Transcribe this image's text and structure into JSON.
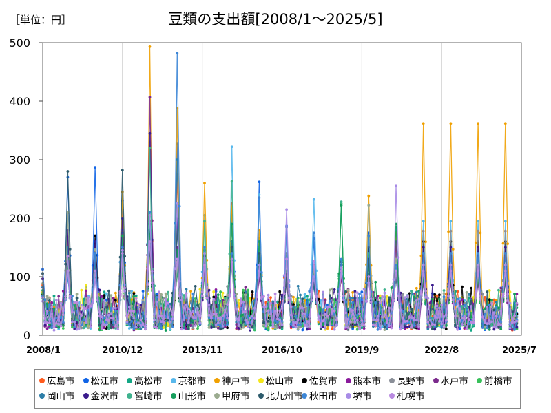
{
  "chart_data": {
    "type": "line",
    "title": "豆類の支出額[2008/1～2025/5]",
    "unit_label": "［単位：円］",
    "xlabel": "",
    "ylabel": "",
    "ylim": [
      0,
      500
    ],
    "y_ticks": [
      0,
      100,
      200,
      300,
      400,
      500
    ],
    "x_start": "2008/1",
    "x_end": "2025/7",
    "x_ticks": [
      "2008/1",
      "2010/12",
      "2013/11",
      "2016/10",
      "2019/9",
      "2022/8",
      "2025/7"
    ],
    "grid": "vertical",
    "legend_position": "bottom",
    "seasonal_peak_month": 12,
    "series": [
      {
        "name": "広島市",
        "color": "#ff5b1e",
        "peaks": [
          160,
          150,
          215,
          195,
          275,
          145,
          225,
          160,
          185,
          120,
          105,
          160,
          150,
          148
        ]
      },
      {
        "name": "松江市",
        "color": "#1064e6",
        "peaks": [
          270,
          287,
          230,
          210,
          327,
          135,
          205,
          262,
          187,
          165,
          100,
          175,
          185,
          142
        ]
      },
      {
        "name": "高松市",
        "color": "#13a785",
        "peaks": [
          130,
          120,
          175,
          180,
          140,
          150,
          145,
          165,
          135,
          110,
          128,
          168,
          185,
          90
        ]
      },
      {
        "name": "京都市",
        "color": "#58b8ec",
        "peaks": [
          140,
          100,
          245,
          330,
          205,
          205,
          322,
          240,
          185,
          232,
          110,
          160,
          180,
          195
        ]
      },
      {
        "name": "神戸市",
        "color": "#f0a000",
        "peaks": [
          160,
          130,
          245,
          493,
          388,
          260,
          220,
          180,
          110,
          90,
          100,
          238,
          175,
          362
        ]
      },
      {
        "name": "松山市",
        "color": "#f4e61a",
        "peaks": [
          120,
          110,
          150,
          140,
          120,
          130,
          160,
          110,
          90,
          95,
          110,
          130,
          120,
          110
        ]
      },
      {
        "name": "佐賀市",
        "color": "#000000",
        "peaks": [
          150,
          170,
          120,
          205,
          110,
          145,
          160,
          150,
          110,
          85,
          105,
          150,
          100,
          160
        ]
      },
      {
        "name": "熊本市",
        "color": "#8a1a9b",
        "peaks": [
          140,
          130,
          110,
          205,
          150,
          120,
          130,
          100,
          110,
          95,
          100,
          130,
          120,
          90
        ]
      },
      {
        "name": "長野市",
        "color": "#8a8f98",
        "peaks": [
          209,
          145,
          180,
          170,
          218,
          150,
          130,
          120,
          140,
          118,
          110,
          120,
          140,
          178
        ]
      },
      {
        "name": "水戸市",
        "color": "#7b2a8c",
        "peaks": [
          168,
          100,
          140,
          407,
          150,
          110,
          130,
          100,
          105,
          95,
          105,
          100,
          160,
          120
        ]
      },
      {
        "name": "前橋市",
        "color": "#38c15a",
        "peaks": [
          118,
          120,
          110,
          140,
          125,
          100,
          120,
          110,
          100,
          90,
          225,
          140,
          115,
          100
        ]
      },
      {
        "name": "岡山市",
        "color": "#2d7ea8",
        "peaks": [
          150,
          120,
          175,
          210,
          300,
          140,
          160,
          160,
          100,
          85,
          125,
          105,
          100,
          140
        ]
      },
      {
        "name": "金沢市",
        "color": "#3a1b8c",
        "peaks": [
          180,
          160,
          200,
          345,
          200,
          120,
          140,
          110,
          90,
          95,
          120,
          100,
          110,
          150
        ]
      },
      {
        "name": "宮崎市",
        "color": "#3fb28e",
        "peaks": [
          100,
          110,
          120,
          320,
          110,
          195,
          263,
          150,
          110,
          100,
          228,
          100,
          110,
          120
        ]
      },
      {
        "name": "山形市",
        "color": "#169e5c",
        "peaks": [
          130,
          110,
          170,
          190,
          145,
          150,
          190,
          160,
          110,
          100,
          222,
          120,
          190,
          100
        ]
      },
      {
        "name": "甲府市",
        "color": "#9bab8f",
        "peaks": [
          210,
          146,
          130,
          140,
          125,
          150,
          130,
          120,
          100,
          118,
          110,
          222,
          130,
          110
        ]
      },
      {
        "name": "北九州市",
        "color": "#2c5a6b",
        "peaks": [
          280,
          140,
          282,
          150,
          180,
          135,
          150,
          140,
          105,
          95,
          125,
          130,
          100,
          120
        ]
      },
      {
        "name": "秋田市",
        "color": "#3d86d6",
        "peaks": [
          100,
          140,
          150,
          210,
          482,
          150,
          140,
          235,
          185,
          175,
          130,
          170,
          120,
          140
        ]
      },
      {
        "name": "堺市",
        "color": "#a88ce6",
        "peaks": [
          110,
          95,
          145,
          205,
          225,
          140,
          130,
          120,
          215,
          100,
          115,
          90,
          255,
          120
        ]
      },
      {
        "name": "札幌市",
        "color": "#b98ae0",
        "peaks": [
          135,
          110,
          140,
          160,
          130,
          120,
          125,
          110,
          130,
          127,
          110,
          100,
          110,
          110
        ]
      }
    ]
  }
}
